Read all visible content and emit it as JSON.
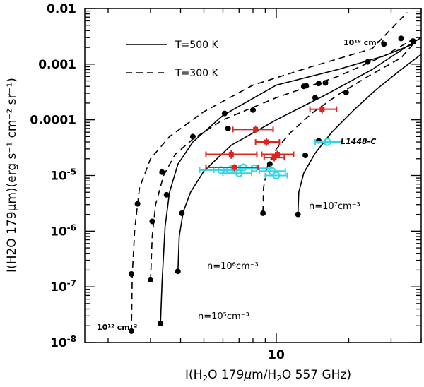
{
  "chart_data": {
    "type": "scatter",
    "xscale": "log",
    "yscale": "log",
    "xlim": [
      1.6,
      40
    ],
    "ylim": [
      1e-08,
      0.01
    ],
    "xlabel_pre": "I(H",
    "xlabel_sub": "2",
    "xlabel_mid": "O 179",
    "xlabel_mu": "μ",
    "xlabel_m": "m/H",
    "xlabel_sub2": "2",
    "xlabel_post": "O 557 GHz)",
    "ylabel": "I(H2O 179μm)(erg s⁻¹ cm⁻² sr⁻¹)",
    "x_ticks": [
      {
        "value": 10,
        "label": "10"
      }
    ],
    "y_ticks": [
      {
        "value": 1e-08,
        "label": "10-8"
      },
      {
        "value": 1e-07,
        "label": "10-7"
      },
      {
        "value": 1e-06,
        "label": "10-6"
      },
      {
        "value": 1e-05,
        "label": "10-5"
      },
      {
        "value": 0.0001,
        "label": "0.0001"
      },
      {
        "value": 0.001,
        "label": "0.001"
      },
      {
        "value": 0.01,
        "label": "0.01"
      }
    ],
    "legend": [
      {
        "label": "T=500 K",
        "style": "solid"
      },
      {
        "label": "T=300 K",
        "style": "dashed"
      }
    ],
    "annotations": [
      {
        "text": "10¹⁸ cm⁻²",
        "x": 22,
        "y": 0.0028
      },
      {
        "text": "10¹² cm⁻²",
        "x": 1.85,
        "y": 1.7e-08
      },
      {
        "text": "n=10⁷cm⁻³",
        "x": 13,
        "y": 2.3e-06
      },
      {
        "text": "n=10⁶cm⁻³",
        "x": 4.3,
        "y": 1.8e-07
      },
      {
        "text": "n=10⁵cm⁻³",
        "x": 3.7,
        "y": 2.6e-08
      },
      {
        "text": "L1448-C",
        "x": 17,
        "y": 4.2e-05
      }
    ],
    "series": [
      {
        "name": "n=1e5 T=500",
        "style": "solid",
        "points": [
          [
            3.3,
            2.2e-08
          ],
          [
            3.35,
            1.2e-07
          ],
          [
            3.45,
            1.2e-06
          ],
          [
            3.6,
            5e-06
          ],
          [
            3.9,
            1.6e-05
          ],
          [
            4.5,
            4e-05
          ],
          [
            6,
            0.00012
          ],
          [
            10,
            0.00042
          ],
          [
            18,
            0.0008
          ],
          [
            28,
            0.0014
          ],
          [
            38,
            0.0024
          ]
        ],
        "markers": [
          [
            3.3,
            2.2e-08
          ],
          [
            3.5,
            4.5e-06
          ],
          [
            6.3,
            7e-05
          ],
          [
            13,
            0.0004
          ],
          [
            24,
            0.0011
          ]
        ]
      },
      {
        "name": "n=1e6 T=500",
        "style": "solid",
        "points": [
          [
            3.9,
            1.9e-07
          ],
          [
            3.95,
            8e-07
          ],
          [
            4.1,
            2.2e-06
          ],
          [
            4.4,
            5e-06
          ],
          [
            5,
            1.2e-05
          ],
          [
            6.5,
            3.5e-05
          ],
          [
            10,
            0.0001
          ],
          [
            16,
            0.00028
          ],
          [
            25,
            0.0008
          ],
          [
            35,
            0.0021
          ],
          [
            40,
            0.003
          ]
        ],
        "markers": [
          [
            3.9,
            1.9e-07
          ],
          [
            4.05,
            2.1e-06
          ],
          [
            8,
            0.00015
          ],
          [
            15,
            0.00045
          ],
          [
            37,
            0.0026
          ]
        ]
      },
      {
        "name": "n=1e7 T=500",
        "style": "solid",
        "points": [
          [
            12.3,
            2e-06
          ],
          [
            12.4,
            5e-06
          ],
          [
            13,
            1.1e-05
          ],
          [
            14.5,
            2.5e-05
          ],
          [
            17,
            6e-05
          ],
          [
            21,
            0.00015
          ],
          [
            26,
            0.00035
          ],
          [
            33,
            0.0008
          ],
          [
            40,
            0.0015
          ]
        ],
        "markers": [
          [
            12.3,
            2e-06
          ],
          [
            13.2,
            2.3e-05
          ],
          [
            15,
            4.2e-05
          ],
          [
            19.5,
            0.00031
          ]
        ]
      },
      {
        "name": "n=1e5 T=300",
        "style": "dashed",
        "points": [
          [
            2.5,
            1.6e-08
          ],
          [
            2.52,
            1.7e-07
          ],
          [
            2.58,
            1.1e-06
          ],
          [
            2.7,
            6e-06
          ],
          [
            3,
            2e-05
          ],
          [
            3.6,
            5e-05
          ],
          [
            5,
            0.00014
          ],
          [
            8,
            0.00042
          ],
          [
            14,
            0.0009
          ],
          [
            25,
            0.0019
          ],
          [
            35,
            0.0085
          ]
        ],
        "markers": [
          [
            2.5,
            1.6e-08
          ],
          [
            2.5,
            1.7e-07
          ],
          [
            2.65,
            3.1e-06
          ],
          [
            4.5,
            5e-05
          ],
          [
            13.3,
            0.00041
          ]
        ]
      },
      {
        "name": "n=1e6 T=300",
        "style": "dashed",
        "points": [
          [
            3,
            1.3e-07
          ],
          [
            3.05,
            8e-07
          ],
          [
            3.15,
            3e-06
          ],
          [
            3.4,
            1e-05
          ],
          [
            3.8,
            2.4e-05
          ],
          [
            4.5,
            4.5e-05
          ],
          [
            6,
            0.0001
          ],
          [
            10,
            0.00025
          ],
          [
            18,
            0.0006
          ],
          [
            28,
            0.0014
          ],
          [
            37,
            0.0028
          ]
        ],
        "markers": [
          [
            3,
            1.35e-07
          ],
          [
            3.05,
            1.5e-06
          ],
          [
            3.35,
            1.15e-05
          ],
          [
            6.1,
            0.00013
          ],
          [
            16,
            0.00046
          ],
          [
            28,
            0.0023
          ],
          [
            33,
            0.0029
          ]
        ]
      },
      {
        "name": "n=1e7 T=300",
        "style": "dashed",
        "points": [
          [
            8.8,
            2.2e-06
          ],
          [
            8.85,
            6e-06
          ],
          [
            9.2,
            1.5e-05
          ],
          [
            10,
            3e-05
          ],
          [
            11.5,
            6e-05
          ],
          [
            14,
            0.00013
          ],
          [
            18,
            0.00028
          ],
          [
            24,
            0.0006
          ],
          [
            33,
            0.0013
          ],
          [
            38,
            0.0026
          ]
        ],
        "markers": [
          [
            8.8,
            2.1e-06
          ],
          [
            9.4,
            1.6e-05
          ],
          [
            14.5,
            0.00025
          ]
        ]
      }
    ],
    "red_points": [
      {
        "x": 6.5,
        "y": 2.4e-05,
        "xerr": [
          1.4,
          1.8
        ],
        "yerr": [
          4e-06,
          5e-06
        ]
      },
      {
        "x": 8.2,
        "y": 6.7e-05,
        "xerr": [
          1.6,
          1.5
        ],
        "yerr": [
          1e-05,
          1.2e-05
        ]
      },
      {
        "x": 9.1,
        "y": 4e-05,
        "xerr": [
          0.9,
          1.2
        ],
        "yerr": [
          6e-06,
          7e-06
        ]
      },
      {
        "x": 10.1,
        "y": 2.4e-05,
        "xerr": [
          1.4,
          1.7
        ],
        "yerr": [
          3.5e-06,
          4e-06
        ]
      },
      {
        "x": 9.8,
        "y": 2.1e-05,
        "xerr": [
          0.9,
          1
        ],
        "yerr": [
          3e-06,
          3e-06
        ]
      },
      {
        "x": 6.7,
        "y": 1.4e-05,
        "xerr": [
          1.6,
          1.7
        ],
        "yerr": [
          2e-06,
          2e-06
        ]
      },
      {
        "x": 15.5,
        "y": 0.000155,
        "xerr": [
          1.7,
          2.3
        ],
        "yerr": [
          2.5e-05,
          3e-05
        ]
      }
    ],
    "cyan_points": [
      {
        "x": 5.9,
        "y": 1.25e-05,
        "xerr": [
          1.1,
          0.8
        ]
      },
      {
        "x": 6.4,
        "y": 1.25e-05,
        "xerr": [
          0.9,
          0.7
        ]
      },
      {
        "x": 7,
        "y": 1.1e-05,
        "xerr": [
          1,
          0.9
        ]
      },
      {
        "x": 7.3,
        "y": 1.4e-05,
        "xerr": [
          0.8,
          1
        ]
      },
      {
        "x": 8.1,
        "y": 1.35e-05,
        "xerr": [
          1.1,
          1.4
        ]
      },
      {
        "x": 9.6,
        "y": 1.2e-05,
        "xerr": [
          1.1,
          1.3
        ]
      },
      {
        "x": 10,
        "y": 1e-05,
        "xerr": [
          1,
          1.1
        ]
      },
      {
        "x": 16.3,
        "y": 4e-05,
        "xerr": [
          1.8,
          2.3
        ]
      }
    ],
    "colors": {
      "red": "#e0231c",
      "cyan": "#33d6e6"
    }
  }
}
